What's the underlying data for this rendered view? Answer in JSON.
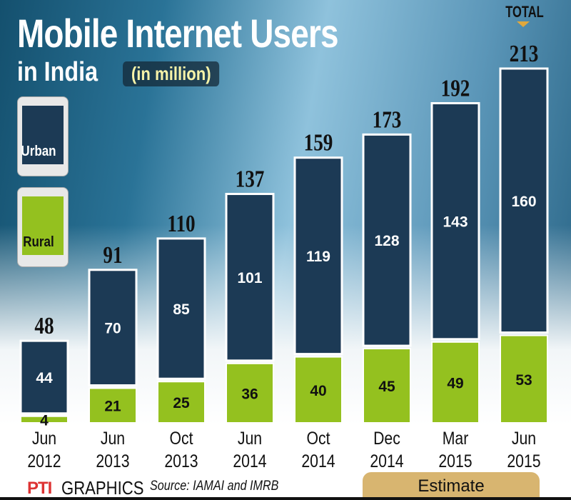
{
  "title": "Mobile Internet Users",
  "subtitle": "in India",
  "unit": "(in million)",
  "total_label": "TOTAL",
  "legend": {
    "urban": "Urban",
    "rural": "Rural"
  },
  "colors": {
    "urban": "#1c3a55",
    "rural": "#94c11f",
    "estimate": "#d8b570"
  },
  "footer": {
    "pti": "PTI",
    "graphics": "GRAPHICS",
    "source": "Source: IAMAI and IMRB",
    "estimate": "Estimate"
  },
  "chart_data": {
    "type": "bar",
    "stacked": true,
    "categories": [
      "Jun 2012",
      "Jun 2013",
      "Oct 2013",
      "Jun 2014",
      "Oct 2014",
      "Dec 2014",
      "Mar 2015",
      "Jun 2015"
    ],
    "category_lines": [
      [
        "Jun",
        "2012"
      ],
      [
        "Jun",
        "2013"
      ],
      [
        "Oct",
        "2013"
      ],
      [
        "Jun",
        "2014"
      ],
      [
        "Oct",
        "2014"
      ],
      [
        "Dec",
        "2014"
      ],
      [
        "Mar",
        "2015"
      ],
      [
        "Jun",
        "2015"
      ]
    ],
    "series": [
      {
        "name": "Rural",
        "values": [
          4,
          21,
          25,
          36,
          40,
          45,
          49,
          53
        ]
      },
      {
        "name": "Urban",
        "values": [
          44,
          70,
          85,
          101,
          119,
          128,
          143,
          160
        ]
      }
    ],
    "totals": [
      48,
      91,
      110,
      137,
      159,
      173,
      192,
      213
    ],
    "estimate_categories": [
      "Dec 2014",
      "Mar 2015",
      "Jun 2015"
    ],
    "grid": false
  }
}
